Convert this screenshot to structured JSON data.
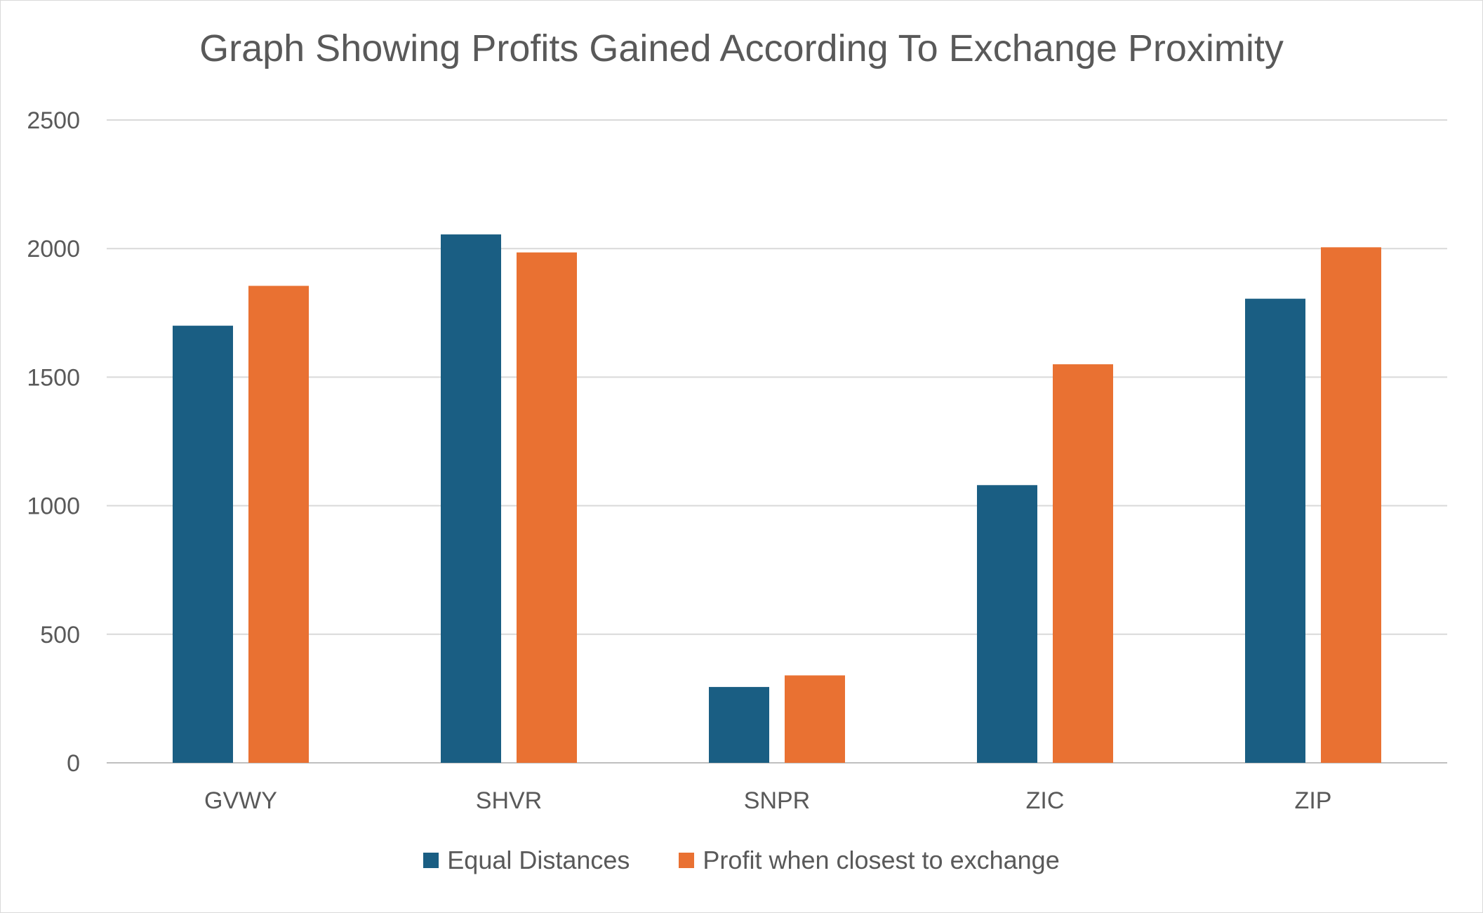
{
  "chart_data": {
    "type": "bar",
    "title": "Graph Showing Profits Gained According To Exchange Proximity",
    "xlabel": "",
    "ylabel": "",
    "categories": [
      "GVWY",
      "SHVR",
      "SNPR",
      "ZIC",
      "ZIP"
    ],
    "series": [
      {
        "name": "Equal Distances",
        "color": "#1a5e83",
        "values": [
          1700,
          2055,
          295,
          1080,
          1805
        ]
      },
      {
        "name": "Profit when closest to exchange",
        "color": "#e97132",
        "values": [
          1855,
          1985,
          340,
          1550,
          2005
        ]
      }
    ],
    "ylim": [
      0,
      2500
    ],
    "yticks": [
      0,
      500,
      1000,
      1500,
      2000,
      2500
    ],
    "grid": true,
    "legend_position": "bottom"
  }
}
